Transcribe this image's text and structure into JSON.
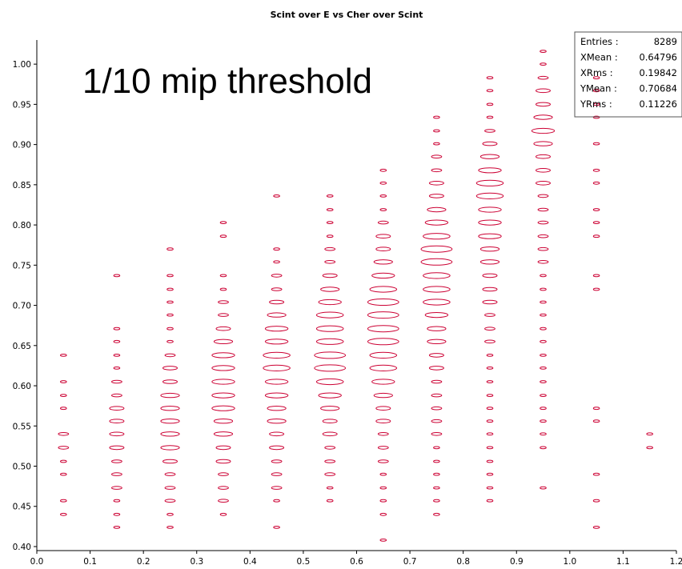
{
  "chart_data": {
    "type": "scatter",
    "title": "Scint over E vs Cher over Scint",
    "xlabel": "",
    "ylabel": "",
    "xlim": [
      0.0,
      1.2
    ],
    "ylim": [
      0.395,
      1.03
    ],
    "x_ticks": [
      "0.0",
      "0.1",
      "0.2",
      "0.3",
      "0.4",
      "0.5",
      "0.6",
      "0.7",
      "0.8",
      "0.9",
      "1.0",
      "1.1",
      "1.2"
    ],
    "y_ticks": [
      "0.40",
      "0.45",
      "0.50",
      "0.55",
      "0.60",
      "0.65",
      "0.70",
      "0.75",
      "0.80",
      "0.85",
      "0.90",
      "0.95",
      "1.00"
    ],
    "grid": false,
    "marker": "ellipse (box size ~ bin content)",
    "color": "#cc0033",
    "annotation": "1/10 mip threshold",
    "stats": {
      "rows": [
        {
          "label": "Entries :",
          "value": "8289"
        },
        {
          "label": "XMean :",
          "value": "0.64796"
        },
        {
          "label": "XRms :",
          "value": "0.19842"
        },
        {
          "label": "YMean :",
          "value": "0.70684"
        },
        {
          "label": "YRms :",
          "value": "0.11226"
        }
      ]
    },
    "columns": [
      {
        "x": 0.05,
        "y": [
          0.638,
          0.605,
          0.588,
          0.572,
          0.54,
          0.523,
          0.506,
          0.49,
          0.457,
          0.44
        ],
        "w": [
          1,
          1,
          1,
          1,
          2,
          2,
          1,
          1,
          1,
          1
        ]
      },
      {
        "x": 0.15,
        "y": [
          0.737,
          0.671,
          0.655,
          0.638,
          0.622,
          0.605,
          0.588,
          0.572,
          0.556,
          0.54,
          0.523,
          0.506,
          0.49,
          0.473,
          0.457,
          0.44,
          0.424
        ],
        "w": [
          1,
          1,
          1,
          1,
          1,
          2,
          2,
          3,
          3,
          3,
          3,
          2,
          2,
          2,
          1,
          1,
          1
        ]
      },
      {
        "x": 0.25,
        "y": [
          0.77,
          0.737,
          0.72,
          0.704,
          0.688,
          0.671,
          0.655,
          0.638,
          0.622,
          0.605,
          0.588,
          0.572,
          0.556,
          0.54,
          0.523,
          0.506,
          0.49,
          0.473,
          0.457,
          0.44,
          0.424
        ],
        "w": [
          1,
          1,
          1,
          1,
          1,
          1,
          1,
          2,
          3,
          3,
          4,
          4,
          4,
          4,
          4,
          3,
          2,
          2,
          2,
          1,
          1
        ]
      },
      {
        "x": 0.35,
        "y": [
          0.803,
          0.786,
          0.737,
          0.72,
          0.704,
          0.688,
          0.671,
          0.655,
          0.638,
          0.622,
          0.605,
          0.588,
          0.572,
          0.556,
          0.54,
          0.523,
          0.506,
          0.49,
          0.473,
          0.457,
          0.44
        ],
        "w": [
          1,
          1,
          1,
          1,
          2,
          2,
          3,
          4,
          5,
          5,
          5,
          5,
          5,
          4,
          4,
          3,
          3,
          2,
          2,
          2,
          1
        ]
      },
      {
        "x": 0.45,
        "y": [
          0.836,
          0.77,
          0.754,
          0.737,
          0.72,
          0.704,
          0.688,
          0.671,
          0.655,
          0.638,
          0.622,
          0.605,
          0.588,
          0.572,
          0.556,
          0.54,
          0.523,
          0.506,
          0.49,
          0.473,
          0.457,
          0.424
        ],
        "w": [
          1,
          1,
          1,
          2,
          2,
          3,
          4,
          5,
          5,
          6,
          6,
          5,
          5,
          4,
          4,
          3,
          3,
          2,
          2,
          2,
          1,
          1
        ]
      },
      {
        "x": 0.55,
        "y": [
          0.836,
          0.819,
          0.803,
          0.786,
          0.77,
          0.754,
          0.737,
          0.72,
          0.704,
          0.688,
          0.671,
          0.655,
          0.638,
          0.622,
          0.605,
          0.588,
          0.572,
          0.556,
          0.54,
          0.523,
          0.506,
          0.49,
          0.473,
          0.457
        ],
        "w": [
          1,
          1,
          1,
          1,
          2,
          2,
          3,
          4,
          5,
          6,
          6,
          6,
          7,
          7,
          6,
          5,
          4,
          3,
          3,
          2,
          2,
          2,
          1,
          1
        ]
      },
      {
        "x": 0.65,
        "y": [
          0.868,
          0.852,
          0.836,
          0.819,
          0.803,
          0.786,
          0.77,
          0.754,
          0.737,
          0.72,
          0.704,
          0.688,
          0.671,
          0.655,
          0.638,
          0.622,
          0.605,
          0.588,
          0.572,
          0.556,
          0.54,
          0.523,
          0.506,
          0.49,
          0.473,
          0.457,
          0.44,
          0.408
        ],
        "w": [
          1,
          1,
          1,
          1,
          2,
          3,
          3,
          4,
          5,
          6,
          7,
          7,
          7,
          7,
          6,
          6,
          5,
          4,
          3,
          3,
          2,
          2,
          2,
          1,
          1,
          1,
          1,
          1
        ]
      },
      {
        "x": 0.75,
        "y": [
          0.934,
          0.917,
          0.901,
          0.885,
          0.868,
          0.852,
          0.836,
          0.819,
          0.803,
          0.786,
          0.77,
          0.754,
          0.737,
          0.72,
          0.704,
          0.688,
          0.671,
          0.655,
          0.638,
          0.622,
          0.605,
          0.588,
          0.572,
          0.556,
          0.54,
          0.523,
          0.506,
          0.49,
          0.473,
          0.457,
          0.44
        ],
        "w": [
          1,
          1,
          1,
          2,
          2,
          3,
          3,
          4,
          5,
          6,
          7,
          7,
          6,
          6,
          6,
          5,
          4,
          4,
          3,
          3,
          2,
          2,
          2,
          2,
          2,
          1,
          1,
          1,
          1,
          1,
          1
        ]
      },
      {
        "x": 0.85,
        "y": [
          0.983,
          0.967,
          0.95,
          0.934,
          0.917,
          0.901,
          0.885,
          0.868,
          0.852,
          0.836,
          0.819,
          0.803,
          0.786,
          0.77,
          0.754,
          0.737,
          0.72,
          0.704,
          0.688,
          0.671,
          0.655,
          0.638,
          0.622,
          0.605,
          0.588,
          0.572,
          0.556,
          0.54,
          0.523,
          0.506,
          0.49,
          0.473,
          0.457
        ],
        "w": [
          1,
          1,
          1,
          1,
          2,
          3,
          4,
          5,
          6,
          6,
          5,
          5,
          5,
          4,
          4,
          3,
          3,
          3,
          2,
          2,
          2,
          1,
          1,
          1,
          1,
          1,
          1,
          1,
          1,
          1,
          1,
          1,
          1
        ]
      },
      {
        "x": 0.95,
        "y": [
          1.016,
          1.0,
          0.983,
          0.967,
          0.95,
          0.934,
          0.917,
          0.901,
          0.885,
          0.868,
          0.852,
          0.836,
          0.819,
          0.803,
          0.786,
          0.77,
          0.754,
          0.737,
          0.72,
          0.704,
          0.688,
          0.671,
          0.655,
          0.638,
          0.622,
          0.605,
          0.588,
          0.572,
          0.556,
          0.54,
          0.523,
          0.473
        ],
        "w": [
          1,
          1,
          2,
          3,
          3,
          4,
          5,
          4,
          3,
          3,
          3,
          2,
          2,
          2,
          2,
          2,
          2,
          1,
          1,
          1,
          1,
          1,
          1,
          1,
          1,
          1,
          1,
          1,
          1,
          1,
          1,
          1
        ]
      },
      {
        "x": 1.05,
        "y": [
          0.983,
          0.967,
          0.95,
          0.934,
          0.901,
          0.868,
          0.852,
          0.819,
          0.803,
          0.786,
          0.737,
          0.72,
          0.572,
          0.556,
          0.49,
          0.457,
          0.424
        ],
        "w": [
          1,
          1,
          1,
          1,
          1,
          1,
          1,
          1,
          1,
          1,
          1,
          1,
          1,
          1,
          1,
          1,
          1
        ]
      },
      {
        "x": 1.15,
        "y": [
          0.54,
          0.523
        ],
        "w": [
          1,
          1
        ]
      }
    ]
  }
}
